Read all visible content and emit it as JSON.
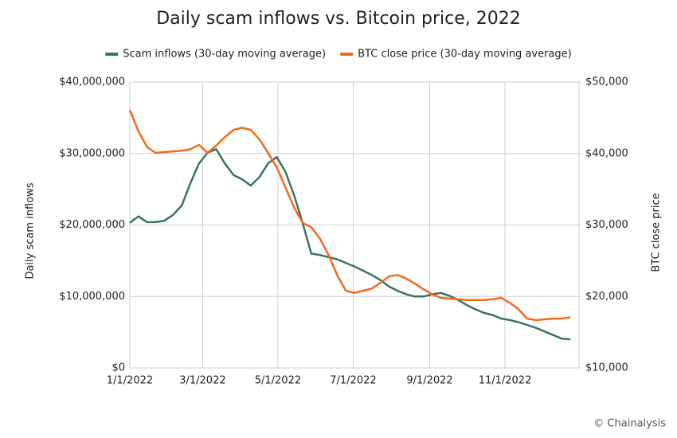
{
  "chart_data": {
    "type": "line",
    "title": "Daily scam inflows vs. Bitcoin price, 2022",
    "y_label": "Daily scam inflows",
    "y2_label": "BTC close price",
    "source": "© Chainalysis",
    "x": [
      "2022-01-01",
      "2022-01-08",
      "2022-01-15",
      "2022-01-22",
      "2022-01-29",
      "2022-02-05",
      "2022-02-12",
      "2022-02-19",
      "2022-02-26",
      "2022-03-05",
      "2022-03-12",
      "2022-03-19",
      "2022-03-26",
      "2022-04-02",
      "2022-04-09",
      "2022-04-16",
      "2022-04-23",
      "2022-04-30",
      "2022-05-07",
      "2022-05-14",
      "2022-05-21",
      "2022-05-28",
      "2022-06-04",
      "2022-06-11",
      "2022-06-18",
      "2022-06-25",
      "2022-07-02",
      "2022-07-09",
      "2022-07-16",
      "2022-07-23",
      "2022-07-30",
      "2022-08-06",
      "2022-08-13",
      "2022-08-20",
      "2022-08-27",
      "2022-09-03",
      "2022-09-10",
      "2022-09-17",
      "2022-09-24",
      "2022-10-01",
      "2022-10-08",
      "2022-10-15",
      "2022-10-22",
      "2022-10-29",
      "2022-11-05",
      "2022-11-12",
      "2022-11-19",
      "2022-11-26",
      "2022-12-03",
      "2022-12-10",
      "2022-12-17",
      "2022-12-24"
    ],
    "series": [
      {
        "name": "Scam inflows (30-day moving average)",
        "color": "#3a7560",
        "axis": "y",
        "values": [
          20300000,
          21200000,
          20400000,
          20400000,
          20600000,
          21400000,
          22700000,
          25800000,
          28600000,
          30100000,
          30600000,
          28600000,
          27000000,
          26400000,
          25500000,
          26700000,
          28600000,
          29500000,
          27500000,
          24200000,
          20300000,
          16000000,
          15800000,
          15500000,
          15200000,
          14700000,
          14200000,
          13600000,
          13000000,
          12300000,
          11400000,
          10800000,
          10300000,
          10000000,
          10000000,
          10300000,
          10500000,
          10100000,
          9500000,
          8800000,
          8200000,
          7700000,
          7400000,
          6900000,
          6700000,
          6400000,
          6000000,
          5600000,
          5100000,
          4600000,
          4100000,
          4000000
        ]
      },
      {
        "name": "BTC close price (30-day moving average)",
        "color": "#f26a1b",
        "axis": "y2",
        "values": [
          46100,
          43100,
          40900,
          40100,
          40200,
          40300,
          40400,
          40600,
          41200,
          40100,
          41100,
          42300,
          43300,
          43600,
          43300,
          42000,
          40100,
          38100,
          35300,
          32500,
          30300,
          29700,
          28100,
          25800,
          23000,
          20800,
          20500,
          20800,
          21100,
          21900,
          22800,
          23000,
          22500,
          21800,
          21000,
          20300,
          19800,
          19700,
          19600,
          19500,
          19500,
          19500,
          19600,
          19800,
          19100,
          18200,
          16900,
          16700,
          16800,
          16900,
          16900,
          17100
        ]
      }
    ],
    "xlim": [
      "2022-01-01",
      "2022-12-31"
    ],
    "xticks": [
      {
        "value": "2022-01-01",
        "label": "1/1/2022"
      },
      {
        "value": "2022-03-01",
        "label": "3/1/2022"
      },
      {
        "value": "2022-05-01",
        "label": "5/1/2022"
      },
      {
        "value": "2022-07-01",
        "label": "7/1/2022"
      },
      {
        "value": "2022-09-01",
        "label": "9/1/2022"
      },
      {
        "value": "2022-11-01",
        "label": "11/1/2022"
      }
    ],
    "ylim": [
      0,
      40000000
    ],
    "yticks": [
      {
        "value": 0,
        "label": "$0"
      },
      {
        "value": 10000000,
        "label": "$10,000,000"
      },
      {
        "value": 20000000,
        "label": "$20,000,000"
      },
      {
        "value": 30000000,
        "label": "$30,000,000"
      },
      {
        "value": 40000000,
        "label": "$40,000,000"
      }
    ],
    "y2lim": [
      10000,
      50000
    ],
    "y2ticks": [
      {
        "value": 10000,
        "label": "$10,000"
      },
      {
        "value": 20000,
        "label": "$20,000"
      },
      {
        "value": 30000,
        "label": "$30,000"
      },
      {
        "value": 40000,
        "label": "$40,000"
      },
      {
        "value": 50000,
        "label": "$50,000"
      }
    ],
    "grid": true,
    "legend": "top"
  }
}
